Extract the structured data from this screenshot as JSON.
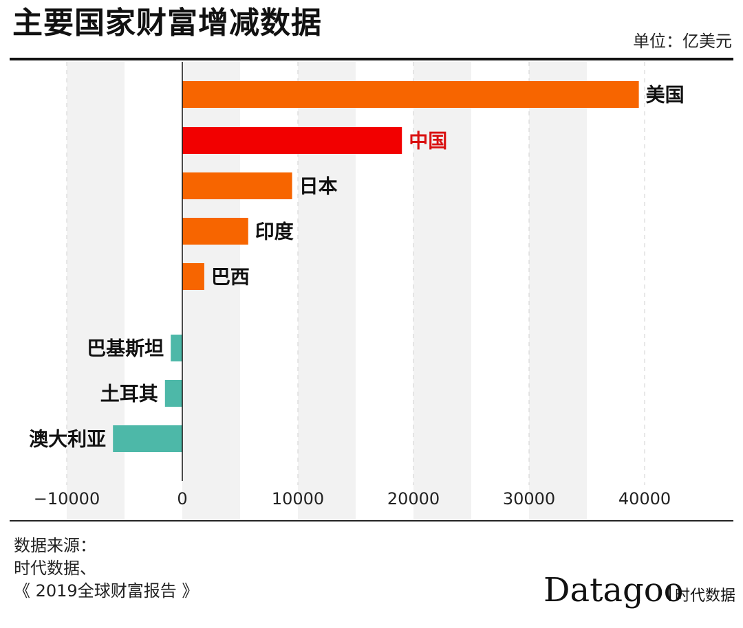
{
  "header": {
    "title": "主要国家财富增减数据",
    "unit": "单位：亿美元"
  },
  "source": {
    "line1": "数据来源：",
    "line2": "时代数据、",
    "line3": "《 2019全球财富报告 》"
  },
  "brand": {
    "name": "Datagoo",
    "subtitle": "时代数据"
  },
  "colors": {
    "positive": "#f76500",
    "highlight": "#f20000",
    "negative": "#4db8a8",
    "highlight_label": "#d91010",
    "band": "#f2f2f2"
  },
  "chart_data": {
    "type": "bar",
    "orientation": "horizontal",
    "title": "主要国家财富增减数据",
    "unit": "亿美元",
    "xlim": [
      -13000,
      43000
    ],
    "x_ticks": [
      -10000,
      0,
      10000,
      20000,
      30000,
      40000
    ],
    "x_tick_labels": [
      "−10000",
      "0",
      "10000",
      "20000",
      "30000",
      "40000"
    ],
    "categories": [
      "美国",
      "中国",
      "日本",
      "印度",
      "巴西",
      "巴基斯坦",
      "土耳其",
      "澳大利亚"
    ],
    "values": [
      39500,
      19000,
      9500,
      5700,
      1900,
      -1000,
      -1500,
      -6000
    ],
    "highlight": "中国",
    "grid": true,
    "legend": "none"
  }
}
